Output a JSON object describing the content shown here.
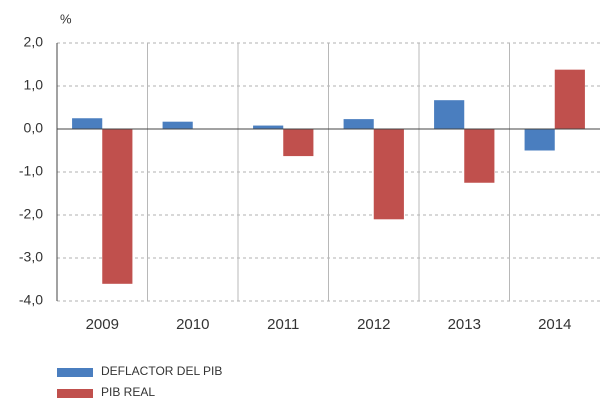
{
  "chart_data": {
    "type": "bar",
    "y_label": "%",
    "categories": [
      "2009",
      "2010",
      "2011",
      "2012",
      "2013",
      "2014"
    ],
    "series": [
      {
        "name": "DEFLACTOR DEL PIB",
        "color": "#4a7ebf",
        "values": [
          0.25,
          0.17,
          0.08,
          0.23,
          0.67,
          -0.5
        ]
      },
      {
        "name": "PIB REAL",
        "color": "#c0504d",
        "values": [
          -3.6,
          0.01,
          -0.63,
          -2.1,
          -1.25,
          1.38
        ]
      }
    ],
    "ylim": [
      -4,
      2
    ],
    "yticks": [
      {
        "value": -4,
        "label": "-4,0"
      },
      {
        "value": -3,
        "label": "-3,0"
      },
      {
        "value": -2,
        "label": "-2,0"
      },
      {
        "value": -1,
        "label": "-1,0"
      },
      {
        "value": 0,
        "label": "0,0"
      },
      {
        "value": 1,
        "label": "1,0"
      },
      {
        "value": 2,
        "label": "2,0"
      }
    ],
    "grid": true,
    "legend": "bottom-left"
  }
}
